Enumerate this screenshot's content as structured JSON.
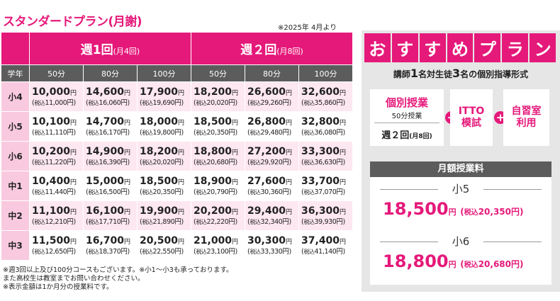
{
  "title": "スタンダードプラン(月謝)",
  "date_note": "※2025年 4月より",
  "table": {
    "grade_label": "学年",
    "week1": {
      "label": "週1回",
      "sub": "(月4回)"
    },
    "week2": {
      "label": "週２回",
      "sub": "(月8回)"
    },
    "durations": [
      "50分",
      "80分",
      "100分",
      "50分",
      "80分",
      "100分"
    ],
    "yen": "円",
    "tax_label": "税込",
    "rows": [
      {
        "grade": "小4",
        "prices": [
          "10,000",
          "14,600",
          "17,900",
          "18,200",
          "26,600",
          "32,600"
        ],
        "tax": [
          "11,000円",
          "16,060円",
          "19,690円",
          "20,020円",
          "29,260円",
          "35,860円"
        ]
      },
      {
        "grade": "小5",
        "prices": [
          "10,100",
          "14,700",
          "18,000",
          "18,500",
          "26,800",
          "32,800"
        ],
        "tax": [
          "11,110円",
          "16,170円",
          "19,800円",
          "20,350円",
          "29,480円",
          "36,080円"
        ]
      },
      {
        "grade": "小6",
        "prices": [
          "10,200",
          "14,900",
          "18,200",
          "18,800",
          "27,200",
          "33,300"
        ],
        "tax": [
          "11,220円",
          "16,390円",
          "20,020円",
          "20,680円",
          "29,920円",
          "36,630円"
        ]
      },
      {
        "grade": "中1",
        "prices": [
          "10,400",
          "15,000",
          "18,500",
          "18,900",
          "27,600",
          "33,700"
        ],
        "tax": [
          "11,440円",
          "16,500円",
          "20,350円",
          "20,790円",
          "30,360円",
          "37,070円"
        ]
      },
      {
        "grade": "中2",
        "prices": [
          "11,100",
          "16,100",
          "19,900",
          "20,200",
          "29,400",
          "36,300"
        ],
        "tax": [
          "12,210円",
          "17,710円",
          "21,890円",
          "22,220円",
          "32,340円",
          "39,930円"
        ]
      },
      {
        "grade": "中3",
        "prices": [
          "11,500",
          "16,700",
          "20,500",
          "21,000",
          "30,300",
          "37,400"
        ],
        "tax": [
          "12,650円",
          "18,370円",
          "22,550円",
          "23,100円",
          "33,330円",
          "41,140円"
        ]
      }
    ]
  },
  "notes": [
    "※週3回以上及び100分コースもございます。※小1〜小3も承っております。",
    "また高校生は教室までお問い合わせください。",
    "※表示金額は1か月分の授業料です。"
  ],
  "recommend": {
    "banner_chars": [
      "お",
      "す",
      "す",
      "め",
      "プ",
      "ラ",
      "ン"
    ],
    "subtitle_a": "講師",
    "subtitle_n1": "1",
    "subtitle_b": "名対生徒",
    "subtitle_n2": "3",
    "subtitle_c": "名の個別指導形式",
    "box1": {
      "title": "個別授業",
      "minutes": "50分授業",
      "twice": "週２回",
      "twice_sub": "(月8回)"
    },
    "box2": {
      "line1": "ITTO",
      "line2": "模試"
    },
    "box3": {
      "line1": "自習室",
      "line2": "利用"
    },
    "plus": "+",
    "fee_header": "月額授業料",
    "fees": [
      {
        "grade": "小5",
        "price": "18,500",
        "yen": "円",
        "tax": "20,350円"
      },
      {
        "grade": "小6",
        "price": "18,800",
        "yen": "円",
        "tax": "20,680円"
      }
    ],
    "tax_label": "税込"
  },
  "colors": {
    "accent": "#e5197a",
    "header_gray": "#5c5c5c",
    "row_pink": "#fde7f1",
    "grade_pink": "#f9c9df",
    "panel_gray": "#e6e6e6"
  }
}
